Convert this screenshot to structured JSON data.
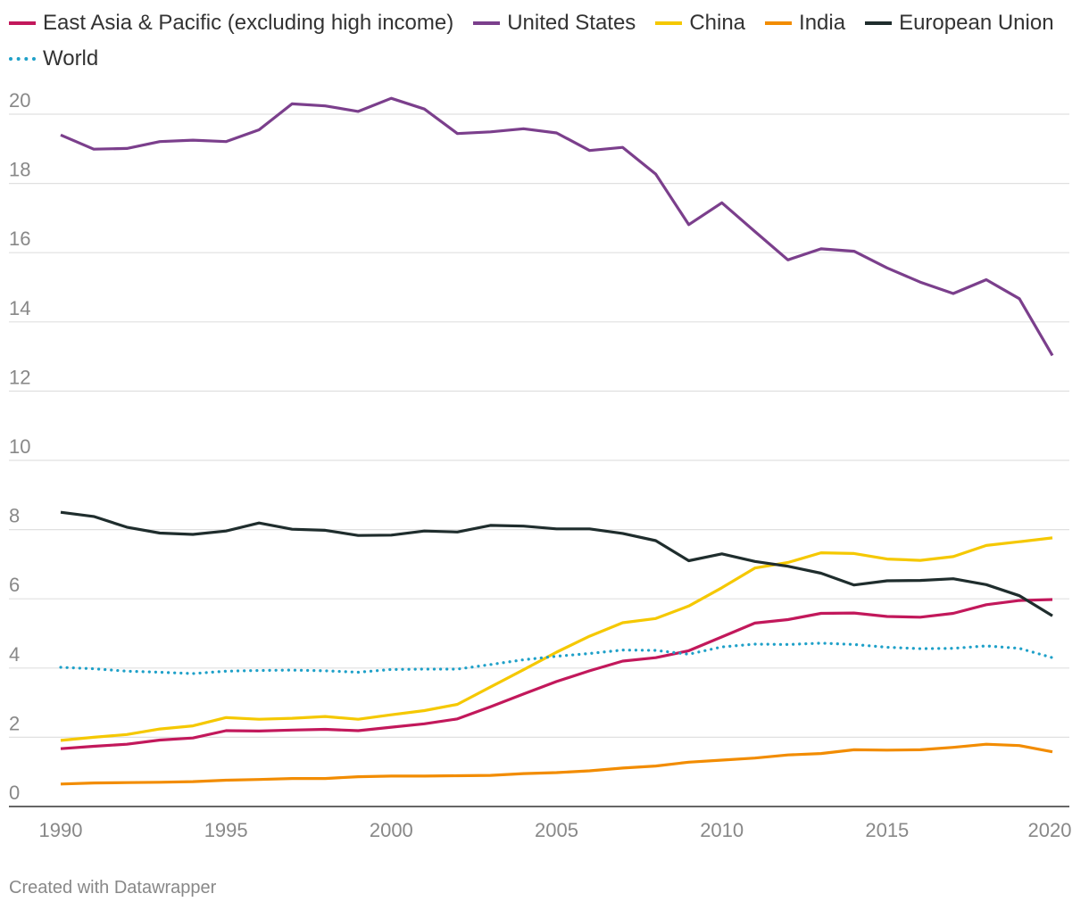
{
  "chart_data": {
    "type": "line",
    "title": "",
    "xlabel": "",
    "ylabel": "",
    "xlim": [
      1990,
      2020
    ],
    "ylim": [
      0,
      20
    ],
    "x_ticks": [
      1990,
      1995,
      2000,
      2005,
      2010,
      2015,
      2020
    ],
    "y_ticks": [
      0,
      2,
      4,
      6,
      8,
      10,
      12,
      14,
      16,
      18,
      20
    ],
    "grid": true,
    "legend": "top",
    "x": [
      1990,
      1991,
      1992,
      1993,
      1994,
      1995,
      1996,
      1997,
      1998,
      1999,
      2000,
      2001,
      2002,
      2003,
      2004,
      2005,
      2006,
      2007,
      2008,
      2009,
      2010,
      2011,
      2012,
      2013,
      2014,
      2015,
      2016,
      2017,
      2018,
      2019,
      2020
    ],
    "series": [
      {
        "name": "East Asia & Pacific (excluding high income)",
        "color": "#c2185b",
        "style": "solid",
        "values": [
          1.67,
          1.74,
          1.8,
          1.92,
          1.98,
          2.19,
          2.18,
          2.21,
          2.23,
          2.19,
          2.29,
          2.39,
          2.53,
          2.88,
          3.25,
          3.61,
          3.92,
          4.2,
          4.3,
          4.5,
          4.9,
          5.3,
          5.4,
          5.58,
          5.59,
          5.49,
          5.47,
          5.58,
          5.83,
          5.95,
          5.98
        ]
      },
      {
        "name": "United States",
        "color": "#7b3f8c",
        "style": "solid",
        "values": [
          19.4,
          18.99,
          19.01,
          19.21,
          19.25,
          19.21,
          19.55,
          20.3,
          20.24,
          20.08,
          20.46,
          20.15,
          19.44,
          19.49,
          19.58,
          19.46,
          18.95,
          19.04,
          18.27,
          16.81,
          17.44,
          16.61,
          15.79,
          16.11,
          16.04,
          15.56,
          15.15,
          14.82,
          15.22,
          14.67,
          13.03
        ]
      },
      {
        "name": "China",
        "color": "#f5c800",
        "style": "solid",
        "values": [
          1.91,
          2.0,
          2.08,
          2.24,
          2.33,
          2.57,
          2.52,
          2.55,
          2.6,
          2.52,
          2.65,
          2.77,
          2.95,
          3.45,
          3.95,
          4.46,
          4.92,
          5.31,
          5.43,
          5.79,
          6.32,
          6.89,
          7.05,
          7.33,
          7.31,
          7.15,
          7.11,
          7.22,
          7.54,
          7.65,
          7.76
        ]
      },
      {
        "name": "India",
        "color": "#f28c00",
        "style": "solid",
        "values": [
          0.65,
          0.68,
          0.69,
          0.7,
          0.72,
          0.76,
          0.78,
          0.81,
          0.81,
          0.86,
          0.88,
          0.88,
          0.89,
          0.9,
          0.95,
          0.98,
          1.03,
          1.11,
          1.17,
          1.28,
          1.34,
          1.4,
          1.49,
          1.53,
          1.64,
          1.63,
          1.64,
          1.71,
          1.8,
          1.76,
          1.58
        ]
      },
      {
        "name": "European Union",
        "color": "#1f2d2d",
        "style": "solid",
        "values": [
          8.5,
          8.38,
          8.07,
          7.9,
          7.86,
          7.96,
          8.19,
          8.01,
          7.98,
          7.83,
          7.84,
          7.96,
          7.93,
          8.12,
          8.1,
          8.02,
          8.02,
          7.89,
          7.68,
          7.1,
          7.3,
          7.08,
          6.94,
          6.74,
          6.4,
          6.52,
          6.53,
          6.58,
          6.41,
          6.09,
          5.51
        ]
      },
      {
        "name": "World",
        "color": "#1ea0c8",
        "style": "dotted",
        "values": [
          4.02,
          3.98,
          3.91,
          3.88,
          3.84,
          3.91,
          3.93,
          3.94,
          3.92,
          3.88,
          3.96,
          3.97,
          3.97,
          4.1,
          4.24,
          4.34,
          4.42,
          4.52,
          4.51,
          4.4,
          4.61,
          4.69,
          4.68,
          4.72,
          4.68,
          4.6,
          4.56,
          4.57,
          4.64,
          4.57,
          4.3
        ]
      }
    ]
  },
  "footer": "Created with Datawrapper"
}
